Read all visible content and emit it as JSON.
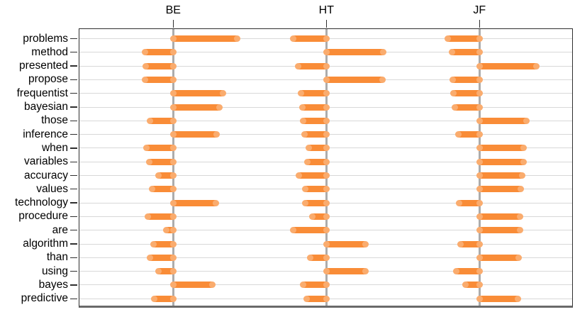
{
  "chart_data": {
    "type": "bar",
    "orientation": "horizontal",
    "title": "",
    "description": "Diverging word-weight bar chart with three group columns (BE, HT, JF); each group has a vertical zero reference line and orange bars extend left (negative) or right (positive). No numeric axis is shown; values are signed bar lengths in screen pixels.",
    "value_unit": "px",
    "categories": [
      "problems",
      "method",
      "presented",
      "propose",
      "frequentist",
      "bayesian",
      "those",
      "inference",
      "when",
      "variables",
      "accuracy",
      "values",
      "technology",
      "procedure",
      "are",
      "algorithm",
      "than",
      "using",
      "bayes",
      "predictive"
    ],
    "series": [
      {
        "name": "BE",
        "values": [
          90,
          -40,
          -39,
          -40,
          70,
          65,
          -33,
          61,
          -38,
          -34,
          -21,
          -30,
          60,
          -36,
          -10,
          -28,
          -33,
          -21,
          55,
          -27
        ]
      },
      {
        "name": "HT",
        "values": [
          -47,
          80,
          -40,
          79,
          -36,
          -34,
          -33,
          -31,
          -25,
          -27,
          -39,
          -30,
          -30,
          -20,
          -47,
          55,
          -23,
          55,
          -33,
          -28
        ]
      },
      {
        "name": "JF",
        "values": [
          -45,
          -39,
          80,
          -38,
          -37,
          -35,
          66,
          -30,
          62,
          62,
          60,
          58,
          -29,
          57,
          57,
          -27,
          55,
          -33,
          -20,
          54
        ]
      }
    ],
    "legend": "none",
    "grid": "horizontal-per-category",
    "top_axis_ticks": [
      "BE",
      "HT",
      "JF"
    ]
  },
  "colors": {
    "bar": "#F98C37",
    "bar_cap_highlight": "rgba(255,255,255,0.28)",
    "zero_line": "#ACACAC",
    "gridline": "#D8D8D8",
    "border": "#2F2F2F",
    "baseline": "#6A6A6A",
    "text": "#000000"
  }
}
